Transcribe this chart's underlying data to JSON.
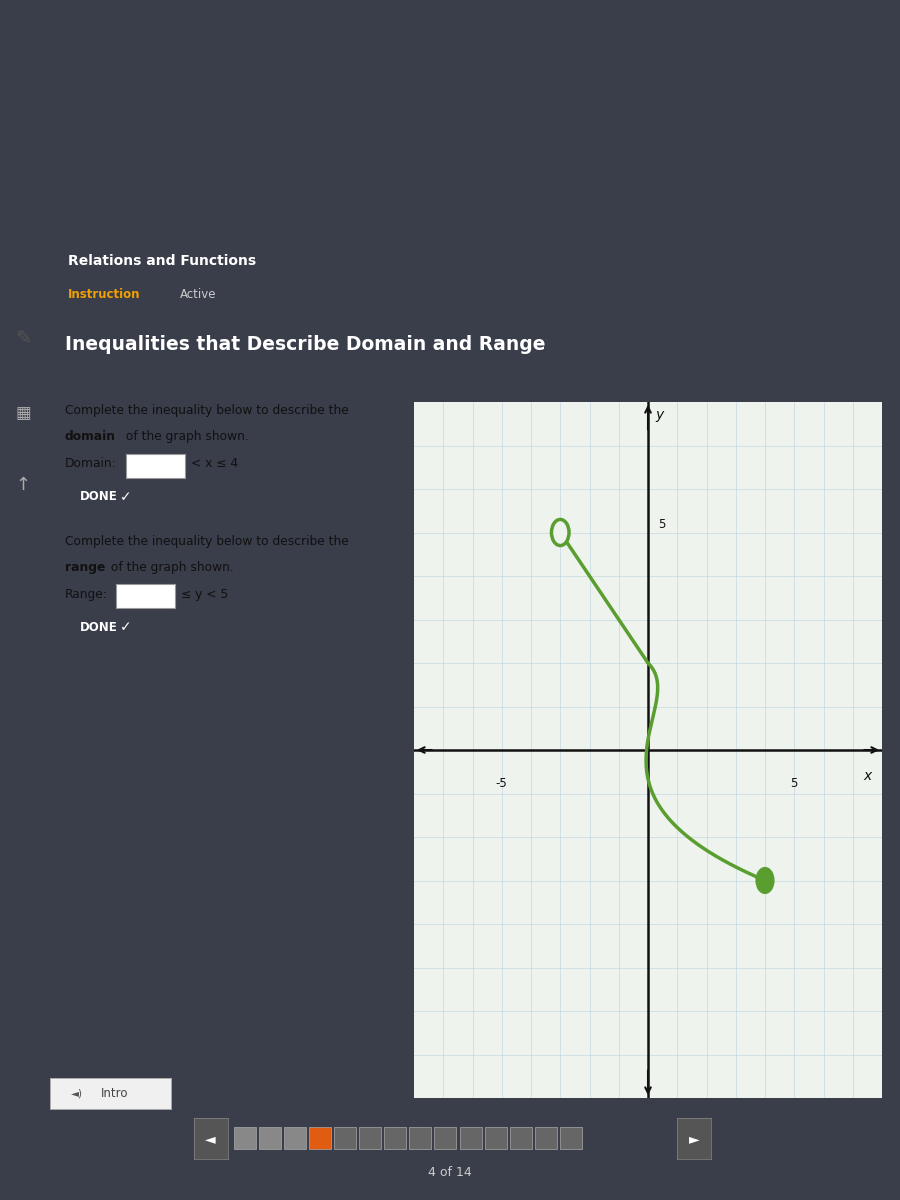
{
  "heading": "Inequalities that Describe Domain and Range",
  "relations_title": "Relations and Functions",
  "instruction_label": "Instruction",
  "active_label": "Active",
  "text1a": "Complete the inequality below to describe the",
  "text1b_bold": "domain",
  "text1b_rest": " of the graph shown.",
  "domain_label": "Domain:",
  "domain_inequality": "< x ≤ 4",
  "done1": "DONE",
  "text2a": "Complete the inequality below to describe the",
  "text2b_bold": "range",
  "text2b_rest": " of the graph shown.",
  "range_label": "Range:",
  "range_inequality": "≤ y < 5",
  "done2": "DONE",
  "intro_text": "Intro",
  "page_text": "4 of 14",
  "curve_color": "#5a9e2f",
  "grid_color": "#c5d8e0",
  "graph_bg": "#eef3ee",
  "card_bg": "#f0f0f0",
  "dark_bg": "#3a3d4a",
  "header_bg": "#2d3650",
  "navy_bar": "#1e3a8a",
  "open_circle": [
    -3,
    5
  ],
  "closed_circle": [
    4,
    -3
  ],
  "xlim": [
    -8,
    8
  ],
  "ylim": [
    -8,
    8
  ],
  "nav_colors": [
    "#888",
    "#888",
    "#888",
    "#e05c10",
    "#666",
    "#666",
    "#666",
    "#666",
    "#666",
    "#666",
    "#666",
    "#666",
    "#666",
    "#666"
  ]
}
